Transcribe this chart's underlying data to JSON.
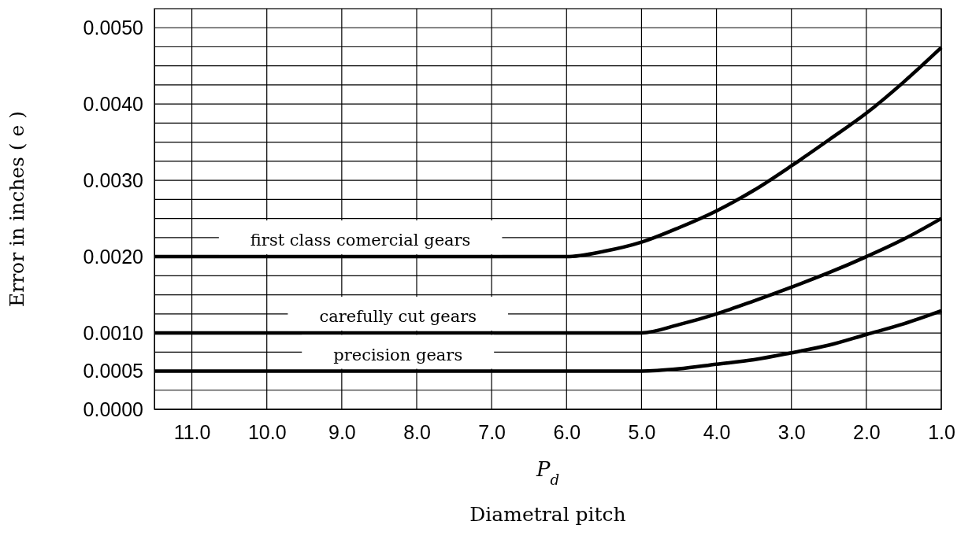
{
  "chart_data": {
    "type": "line",
    "xlabel": "P$_{d}$",
    "ylabel": "Error in inches ( e )",
    "annotations": [
      "Diametral pitch"
    ],
    "xlim": [
      11.5,
      1.0
    ],
    "xticks": [
      {
        "value": 11,
        "label": "11.0"
      },
      {
        "value": 10,
        "label": "10.0"
      },
      {
        "value": 9,
        "label": "9.0"
      },
      {
        "value": 8,
        "label": "8.0"
      },
      {
        "value": 7,
        "label": "7.0"
      },
      {
        "value": 6,
        "label": "6.0"
      },
      {
        "value": 5,
        "label": "5.0"
      },
      {
        "value": 4,
        "label": "4.0"
      },
      {
        "value": 3,
        "label": "3.0"
      },
      {
        "value": 2,
        "label": "2.0"
      },
      {
        "value": 1,
        "label": "1.0"
      }
    ],
    "ylim": [
      0,
      0.00525
    ],
    "yticks": [
      {
        "value": 0,
        "label": "0.0000"
      },
      {
        "value": 0.00025,
        "label": null
      },
      {
        "value": 0.0005,
        "label": "0.0005"
      },
      {
        "value": 0.00075,
        "label": null
      },
      {
        "value": 0.001,
        "label": "0.0010"
      },
      {
        "value": 0.00125,
        "label": null
      },
      {
        "value": 0.0015,
        "label": null
      },
      {
        "value": 0.00175,
        "label": null
      },
      {
        "value": 0.002,
        "label": "0.0020"
      },
      {
        "value": 0.00225,
        "label": null
      },
      {
        "value": 0.0025,
        "label": null
      },
      {
        "value": 0.00275,
        "label": null
      },
      {
        "value": 0.003,
        "label": "0.0030"
      },
      {
        "value": 0.00325,
        "label": null
      },
      {
        "value": 0.0035,
        "label": null
      },
      {
        "value": 0.00375,
        "label": null
      },
      {
        "value": 0.004,
        "label": "0.0040"
      },
      {
        "value": 0.00425,
        "label": null
      },
      {
        "value": 0.0045,
        "label": null
      },
      {
        "value": 0.00475,
        "label": null
      },
      {
        "value": 0.005,
        "label": "0.0050"
      }
    ],
    "grid": true,
    "marker": "none",
    "line_style": "solid",
    "series": [
      {
        "name": "first class comercial gears",
        "color": "#000000",
        "x": [
          11.5,
          6.0,
          5.5,
          5.0,
          4.5,
          4.0,
          3.5,
          3.0,
          2.5,
          2.0,
          1.5,
          1.0
        ],
        "values": [
          0.002,
          0.002,
          0.00207,
          0.00219,
          0.00238,
          0.0026,
          0.00287,
          0.00319,
          0.00353,
          0.00388,
          0.00429,
          0.00474
        ]
      },
      {
        "name": "carefully cut gears",
        "color": "#000000",
        "x": [
          11.5,
          5.0,
          4.5,
          4.0,
          3.5,
          3.0,
          2.5,
          2.0,
          1.5,
          1.0
        ],
        "values": [
          0.001,
          0.001,
          0.00111,
          0.00125,
          0.00142,
          0.0016,
          0.00179,
          0.002,
          0.00223,
          0.0025
        ]
      },
      {
        "name": "precision gears",
        "color": "#000000",
        "x": [
          11.5,
          5.0,
          4.5,
          4.0,
          3.5,
          3.0,
          2.5,
          2.0,
          1.5,
          1.0
        ],
        "values": [
          0.0005,
          0.0005,
          0.00053,
          0.00059,
          0.00065,
          0.00074,
          0.00084,
          0.00098,
          0.00112,
          0.00129
        ]
      }
    ]
  }
}
